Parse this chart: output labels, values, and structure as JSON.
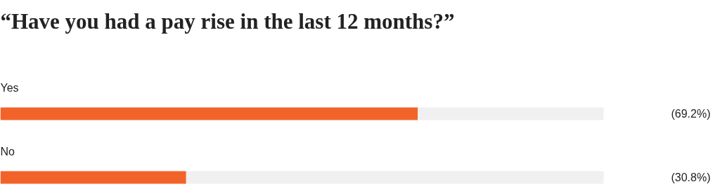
{
  "chart_data": {
    "type": "bar",
    "orientation": "horizontal",
    "stacked": true,
    "title": "“Have you had a pay rise in the last 12 months?”",
    "categories": [
      "Yes",
      "No"
    ],
    "xlim": [
      0,
      100
    ],
    "grid": false,
    "series": [
      {
        "color": "#f26329",
        "values": [
          69.2,
          30.8
        ],
        "value_labels": [
          "(69.2%)",
          "(30.8%)"
        ]
      },
      {
        "color": "#f0f0f0",
        "values": [
          30.8,
          69.2
        ]
      }
    ]
  }
}
